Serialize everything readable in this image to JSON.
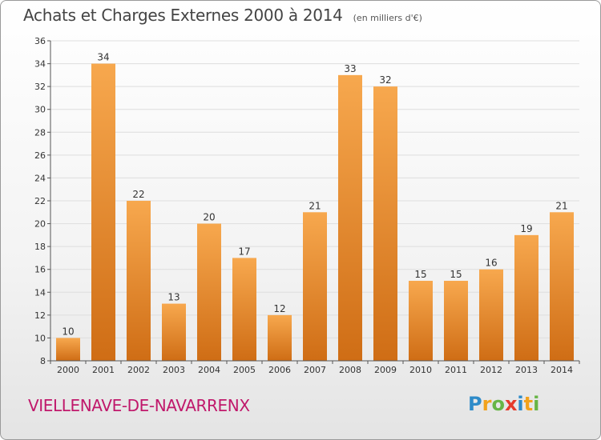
{
  "title": "Achats et Charges Externes 2000 à 2014",
  "unit": "(en milliers d'€)",
  "town": "VIELLENAVE-DE-NAVARRENX",
  "logo": {
    "text": "Proxiti",
    "letters": [
      {
        "ch": "P",
        "color": "#2e8bc9"
      },
      {
        "ch": "r",
        "color": "#f2a21c"
      },
      {
        "ch": "o",
        "color": "#67b546"
      },
      {
        "ch": "x",
        "color": "#e53b2c"
      },
      {
        "ch": "i",
        "color": "#2e8bc9"
      },
      {
        "ch": "t",
        "color": "#f2a21c"
      },
      {
        "ch": "i",
        "color": "#67b546"
      }
    ]
  },
  "colors": {
    "bar_light": "#f7a84e",
    "bar_dark": "#cf6d15",
    "grid": "#dedede",
    "axis": "#555555",
    "title": "#444444",
    "town": "#c0186b"
  },
  "chart_data": {
    "type": "bar",
    "categories": [
      "2000",
      "2001",
      "2002",
      "2003",
      "2004",
      "2005",
      "2006",
      "2007",
      "2008",
      "2009",
      "2010",
      "2011",
      "2012",
      "2013",
      "2014"
    ],
    "values": [
      10,
      34,
      22,
      13,
      20,
      17,
      12,
      21,
      33,
      32,
      15,
      15,
      16,
      19,
      21
    ],
    "ylim": [
      8,
      36
    ],
    "yticks": [
      8,
      10,
      12,
      14,
      16,
      18,
      20,
      22,
      24,
      26,
      28,
      30,
      32,
      34,
      36
    ],
    "grid": true,
    "title": "Achats et Charges Externes 2000 à 2014",
    "xlabel": "",
    "ylabel": ""
  }
}
